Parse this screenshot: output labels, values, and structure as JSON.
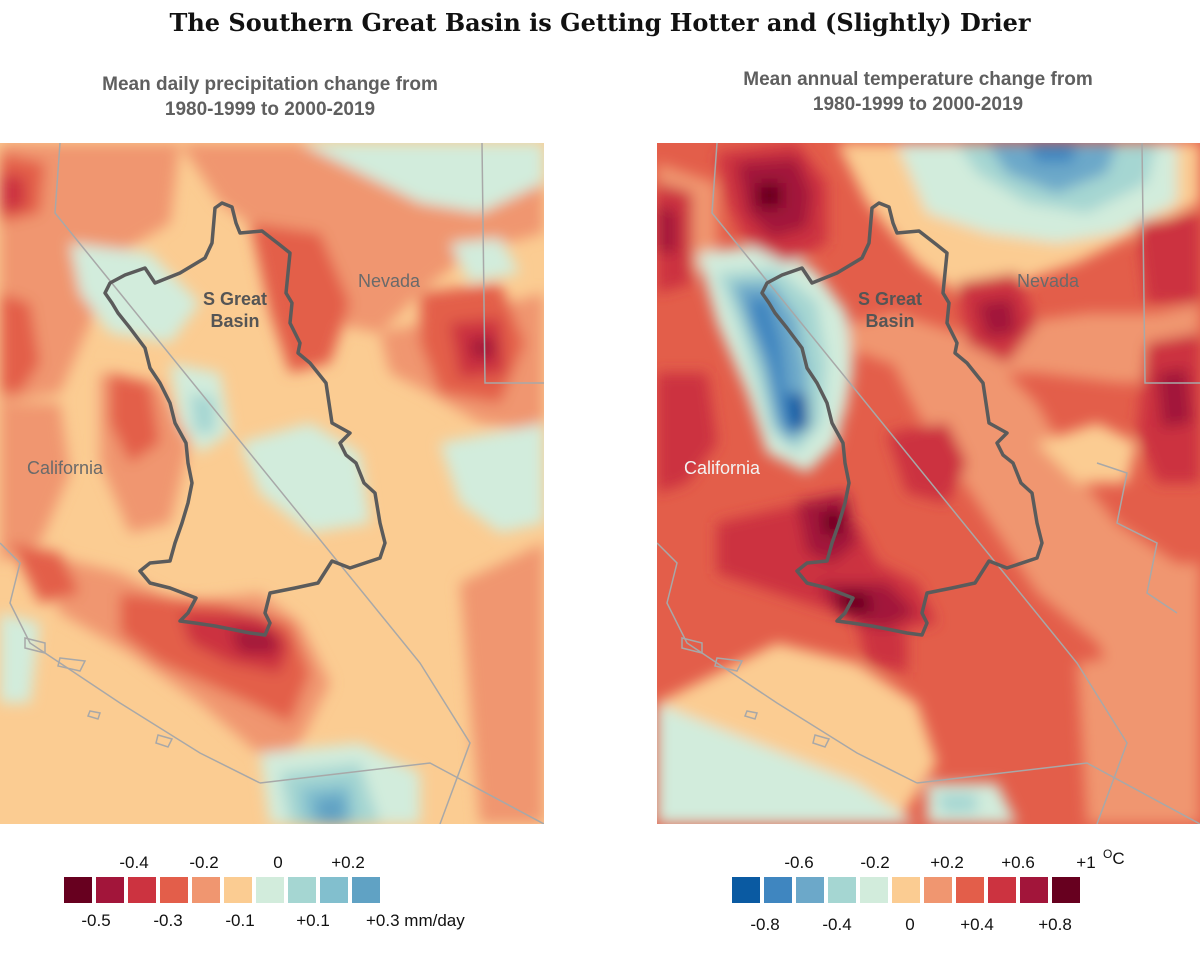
{
  "title": "The Southern Great Basin is Getting Hotter and (Slightly) Drier",
  "panels": {
    "precip": {
      "title_line1": "Mean daily precipitation change from",
      "title_line2": "1980-1999 to 2000-2019",
      "labels": {
        "nevada": "Nevada",
        "california": "California",
        "basin1": "S Great",
        "basin2": "Basin"
      },
      "legend": {
        "colors": [
          "#67001f",
          "#a2153a",
          "#cc3340",
          "#e35e4a",
          "#f09670",
          "#fbcc92",
          "#d2ecdc",
          "#a5d6d2",
          "#82bfce",
          "#60a2c4"
        ],
        "top_ticks": [
          "-0.4",
          "-0.2",
          "0",
          "+0.2"
        ],
        "bottom_ticks": [
          "-0.5",
          "-0.3",
          "-0.1",
          "+0.1",
          "+0.3 mm/day"
        ]
      }
    },
    "temp": {
      "title_line1": "Mean annual temperature change from",
      "title_line2": "1980-1999 to 2000-2019",
      "labels": {
        "nevada": "Nevada",
        "california": "California",
        "basin1": "S Great",
        "basin2": "Basin"
      },
      "legend": {
        "colors": [
          "#0a5aa2",
          "#3f86c0",
          "#6ca8c9",
          "#a5d6d2",
          "#d2ecdc",
          "#fbcc92",
          "#f09670",
          "#e35e4a",
          "#cc3340",
          "#a2153a",
          "#67001f"
        ],
        "top_ticks": [
          "-0.6",
          "-0.2",
          "+0.2",
          "+0.6",
          "+1"
        ],
        "top_unit": "C",
        "top_unit_sup": "O",
        "bottom_ticks": [
          "-0.8",
          "-0.4",
          "0",
          "+0.4",
          "+0.8"
        ]
      }
    }
  }
}
